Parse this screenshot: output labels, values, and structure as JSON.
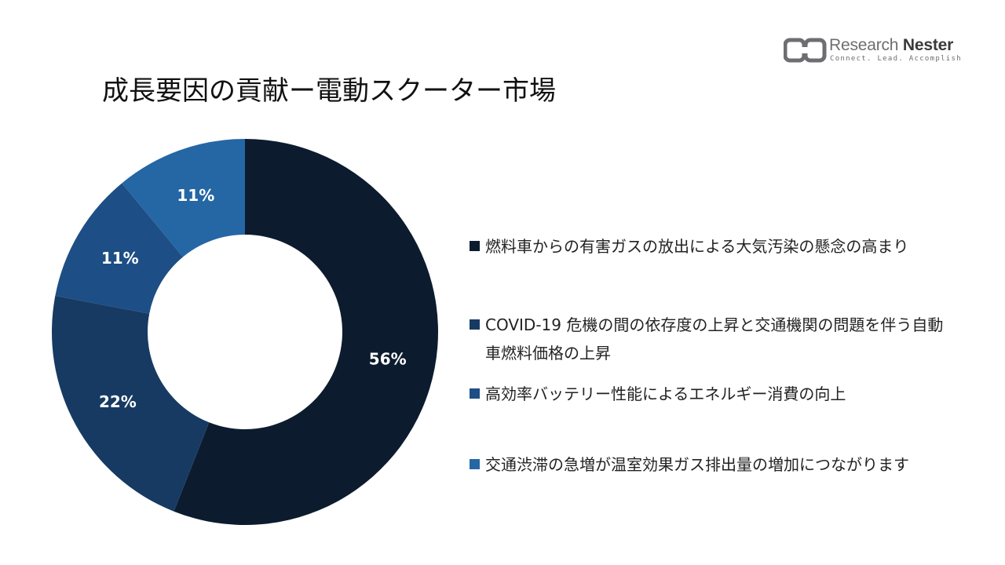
{
  "title": "成長要因の貢献ー電動スクーター市場",
  "brand": {
    "name_light": "Research",
    "name_bold": "Nester",
    "tagline": "Connect. Lead. Accomplish",
    "color": "#6d6e71"
  },
  "chart_data": {
    "type": "pie",
    "donut": true,
    "title": "成長要因の貢献ー電動スクーター市場",
    "legend_position": "right",
    "slices": [
      {
        "label": "燃料車からの有害ガスの放出による大気汚染の懸念の高まり",
        "value": 56,
        "display": "56%",
        "color": "#0d1b2e"
      },
      {
        "label": "COVID-19 危機の間の依存度の上昇と交通機関の問題を伴う自動車燃料価格の上昇",
        "value": 22,
        "display": "22%",
        "color": "#173a63"
      },
      {
        "label": "高効率バッテリー性能によるエネルギー消費の向上",
        "value": 11,
        "display": "11%",
        "color": "#1d4e85"
      },
      {
        "label": "交通渋滞の急増が温室効果ガス排出量の増加につながります",
        "value": 11,
        "display": "11%",
        "color": "#2566a4"
      }
    ]
  }
}
